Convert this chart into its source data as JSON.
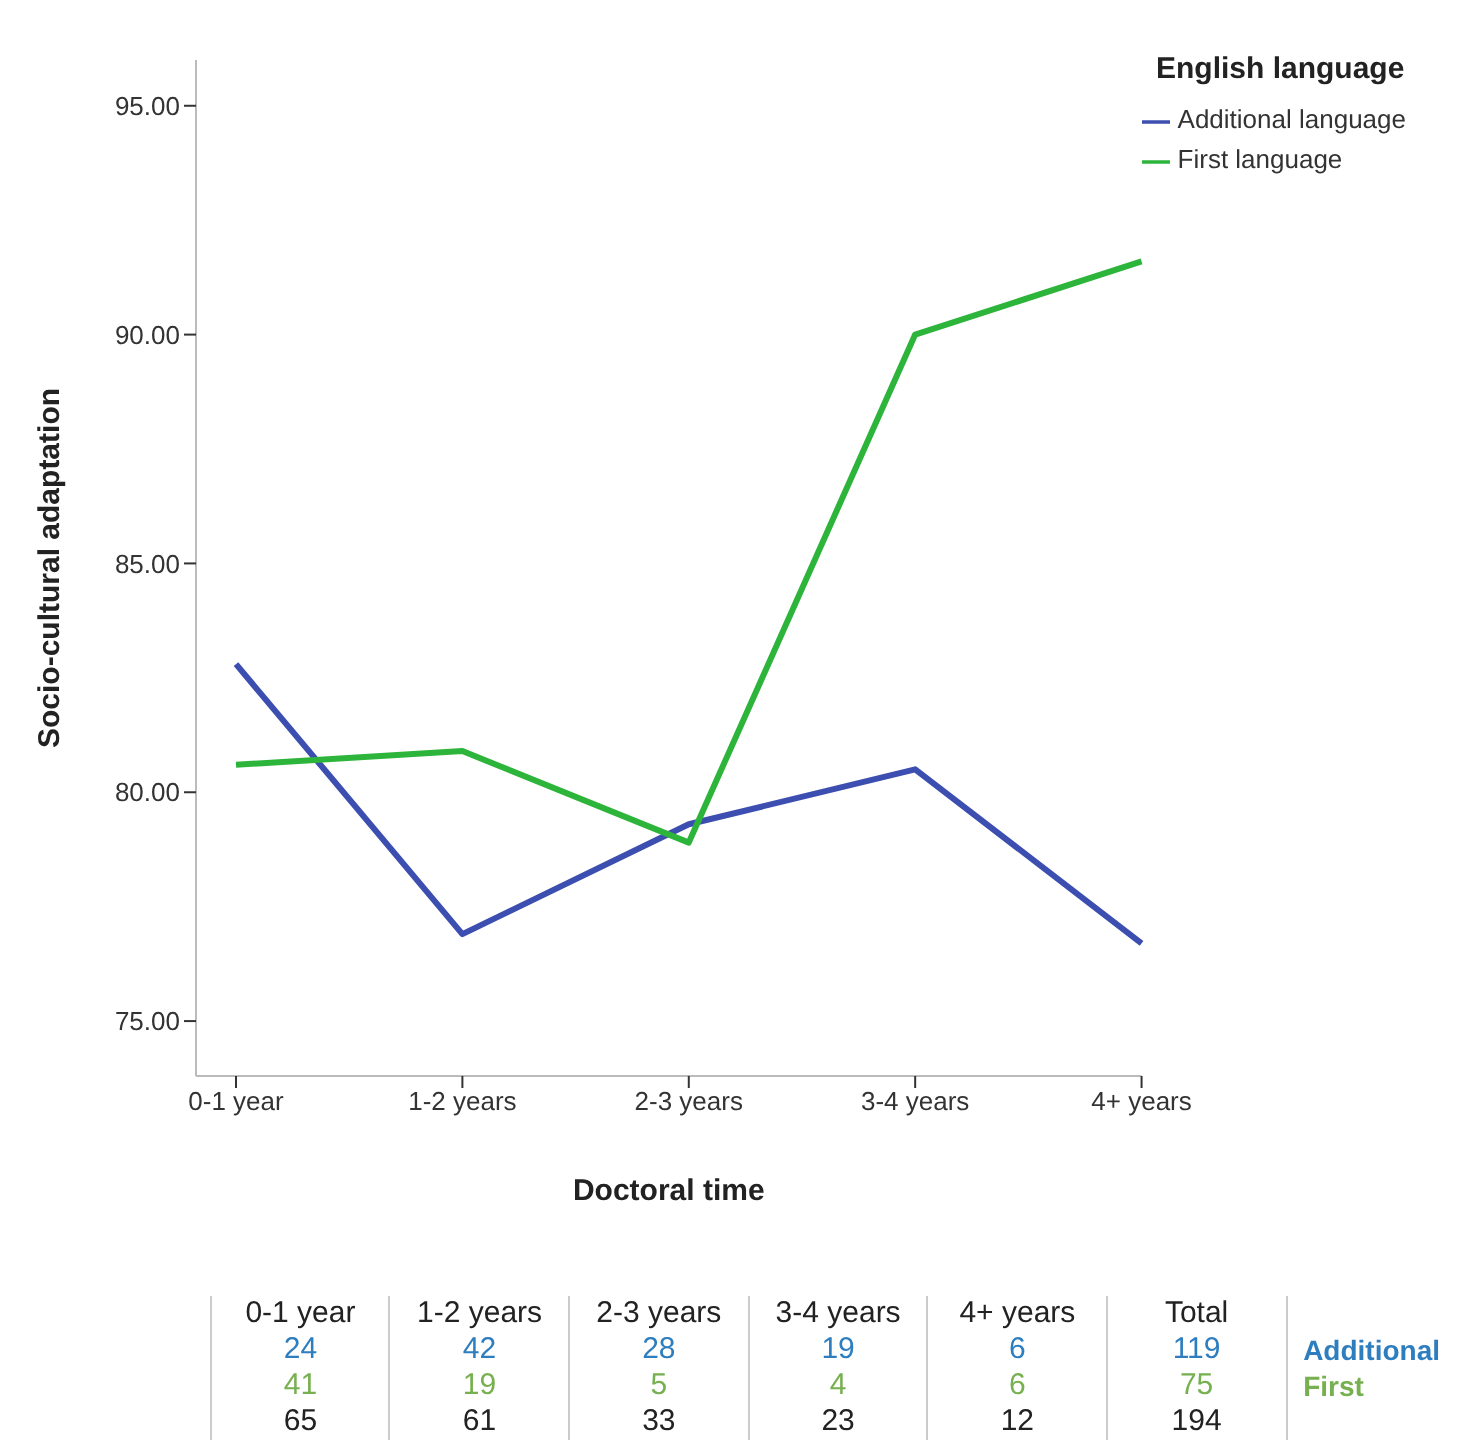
{
  "chart_data": [
    {
      "type": "line",
      "xlabel": "Doctoral time",
      "ylabel": "Socio-cultural adaptation",
      "legend_title": "English language",
      "categories": [
        "0-1 year",
        "1-2 years",
        "2-3 years",
        "3-4 years",
        "4+ years"
      ],
      "series": [
        {
          "name": "Additional language",
          "color": "#3c4fb0",
          "values": [
            82.8,
            76.9,
            79.3,
            80.5,
            76.7
          ]
        },
        {
          "name": "First language",
          "color": "#2db43a",
          "values": [
            80.6,
            80.9,
            78.9,
            90.0,
            91.6
          ]
        }
      ],
      "ylim": [
        73.8,
        96
      ],
      "yticks": [
        {
          "value": 75,
          "label": "75.00"
        },
        {
          "value": 80,
          "label": "80.00"
        },
        {
          "value": 85,
          "label": "85.00"
        },
        {
          "value": 90,
          "label": "90.00"
        },
        {
          "value": 95,
          "label": "95.00"
        }
      ],
      "grid": false,
      "legend": "top right",
      "marker": "none",
      "line_style": "solid"
    },
    {
      "type": "other",
      "data_labels": true,
      "categories": [
        "0-1 year",
        "1-2 years",
        "2-3 years",
        "3-4 years",
        "4+ years",
        "Total"
      ],
      "series": [
        {
          "name": "Additional",
          "color": "#2e7ebf",
          "values": [
            24,
            42,
            28,
            19,
            6,
            119
          ]
        },
        {
          "name": "First",
          "color": "#77b050",
          "values": [
            41,
            19,
            5,
            4,
            6,
            75
          ]
        },
        {
          "color": "#222222",
          "values": [
            65,
            61,
            33,
            23,
            12,
            194
          ]
        }
      ]
    }
  ]
}
